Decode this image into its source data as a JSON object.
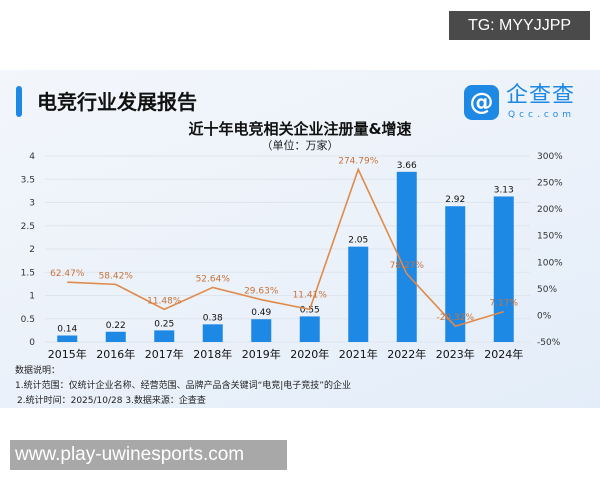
{
  "watermark_top": "TG: MYYJJPP",
  "watermark_bottom": "www.play-uwinesports.com",
  "header": {
    "title": "电竞行业发展报告",
    "logo_cn": "企查查",
    "logo_en": "Qcc.com",
    "logo_icon": "qcc-logo-icon"
  },
  "notes": {
    "heading": "数据说明：",
    "line1": "1.统计范围：仅统计企业名称、经营范围、品牌产品含关键词“电竞|电子竞技”的企业",
    "line2": "2.统计时间：2025/10/28 3.数据来源：企查查"
  },
  "chart_data": {
    "type": "bar+line",
    "title": "近十年电竞相关企业注册量&增速",
    "subtitle": "（单位：万家）",
    "categories": [
      "2015年",
      "2016年",
      "2017年",
      "2018年",
      "2019年",
      "2020年",
      "2021年",
      "2022年",
      "2023年",
      "2024年"
    ],
    "series": [
      {
        "type": "bar",
        "values": [
          0.14,
          0.22,
          0.25,
          0.38,
          0.49,
          0.55,
          2.05,
          3.66,
          2.92,
          3.13
        ],
        "labels": [
          "0.14",
          "0.22",
          "0.25",
          "0.38",
          "0.49",
          "0.55",
          "2.05",
          "3.66",
          "2.92",
          "3.13"
        ],
        "color": "#1e88e5",
        "axis": "left"
      },
      {
        "type": "line",
        "values": [
          62.47,
          58.42,
          11.48,
          52.64,
          29.63,
          11.41,
          274.79,
          78.27,
          -20.32,
          7.17
        ],
        "labels": [
          "62.47%",
          "58.42%",
          "11.48%",
          "52.64%",
          "29.63%",
          "11.41%",
          "274.79%",
          "78.27%",
          "-20.32%",
          "7.17%"
        ],
        "color": "#e08a4a",
        "axis": "right"
      }
    ],
    "left_axis": {
      "ylim": [
        0,
        4
      ],
      "ticks": [
        "0",
        "0.5",
        "1",
        "1.5",
        "2",
        "2.5",
        "3",
        "3.5",
        "4"
      ]
    },
    "right_axis": {
      "ylim": [
        -50,
        300
      ],
      "ticks": [
        "-50%",
        "0%",
        "50%",
        "100%",
        "150%",
        "200%",
        "250%",
        "300%"
      ]
    },
    "grid": true
  }
}
